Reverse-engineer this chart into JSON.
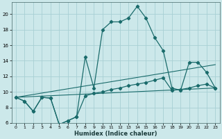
{
  "xlabel": "Humidex (Indice chaleur)",
  "bg_color": "#cce8ea",
  "grid_color": "#a8d0d4",
  "line_color": "#1a6b6b",
  "xlim": [
    -0.5,
    23.5
  ],
  "ylim": [
    6,
    21.5
  ],
  "yticks": [
    6,
    8,
    10,
    12,
    14,
    16,
    18,
    20
  ],
  "xticks": [
    0,
    1,
    2,
    3,
    4,
    5,
    6,
    7,
    8,
    9,
    10,
    11,
    12,
    13,
    14,
    15,
    16,
    17,
    18,
    19,
    20,
    21,
    22,
    23
  ],
  "series": [
    {
      "x": [
        0,
        1,
        2,
        3,
        4,
        5,
        6,
        7,
        8,
        9,
        10,
        11,
        12,
        13,
        14,
        15,
        16,
        17,
        18,
        19,
        20,
        21,
        22,
        23
      ],
      "y": [
        9.3,
        8.8,
        7.5,
        9.3,
        9.2,
        5.8,
        6.3,
        6.8,
        14.5,
        10.5,
        18.0,
        19.0,
        19.0,
        19.5,
        21.0,
        19.5,
        17.0,
        15.3,
        10.5,
        10.2,
        13.8,
        13.8,
        12.5,
        10.5
      ]
    },
    {
      "x": [
        0,
        1,
        2,
        3,
        4,
        5,
        6,
        7,
        8,
        9,
        10,
        11,
        12,
        13,
        14,
        15,
        16,
        17,
        18,
        19,
        20,
        21,
        22,
        23
      ],
      "y": [
        9.3,
        8.8,
        7.5,
        9.3,
        9.2,
        5.8,
        6.3,
        6.8,
        9.5,
        9.8,
        10.0,
        10.3,
        10.5,
        10.8,
        11.0,
        11.2,
        11.5,
        11.8,
        10.2,
        10.3,
        10.5,
        10.8,
        11.0,
        10.5
      ]
    },
    {
      "x": [
        0,
        23
      ],
      "y": [
        9.3,
        10.5
      ]
    },
    {
      "x": [
        0,
        23
      ],
      "y": [
        9.3,
        13.5
      ]
    }
  ]
}
